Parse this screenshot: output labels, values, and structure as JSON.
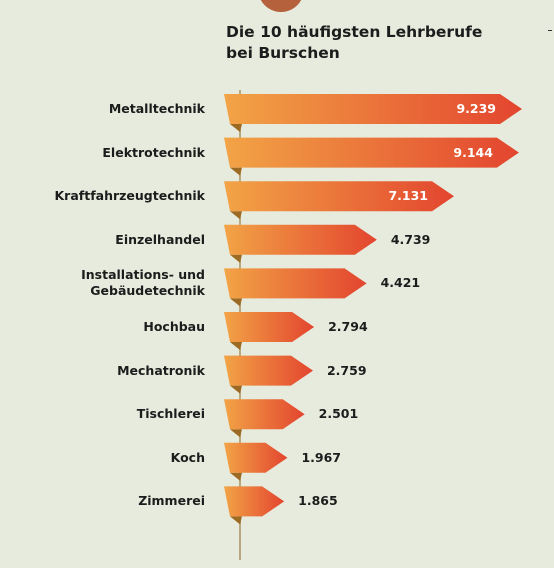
{
  "chart_data": {
    "type": "bar",
    "orientation": "horizontal",
    "title_lines": [
      "Die 10 häufigsten Lehrberufe",
      "bei Burschen"
    ],
    "categories": [
      [
        "Metalltechnik"
      ],
      [
        "Elektrotechnik"
      ],
      [
        "Kraftfahrzeugtechnik"
      ],
      [
        "Einzelhandel"
      ],
      [
        "Installations- und",
        "Gebäudetechnik"
      ],
      [
        "Hochbau"
      ],
      [
        "Mechatronik"
      ],
      [
        "Tischlerei"
      ],
      [
        "Koch"
      ],
      [
        "Zimmerei"
      ]
    ],
    "values": [
      9239,
      9144,
      7131,
      4739,
      4421,
      2794,
      2759,
      2501,
      1967,
      1865
    ],
    "value_labels": [
      "9.239",
      "9.144",
      "7.131",
      "4.739",
      "4.421",
      "2.794",
      "2.759",
      "2.501",
      "1.967",
      "1.865"
    ],
    "xlim": [
      0,
      9239
    ],
    "grid": false,
    "colors": {
      "bar_start": "#f2a446",
      "bar_end": "#e3452f",
      "bar_shadow": "#9c6a22",
      "axis": "#b9a77e",
      "background": "#e6ebdd"
    }
  }
}
